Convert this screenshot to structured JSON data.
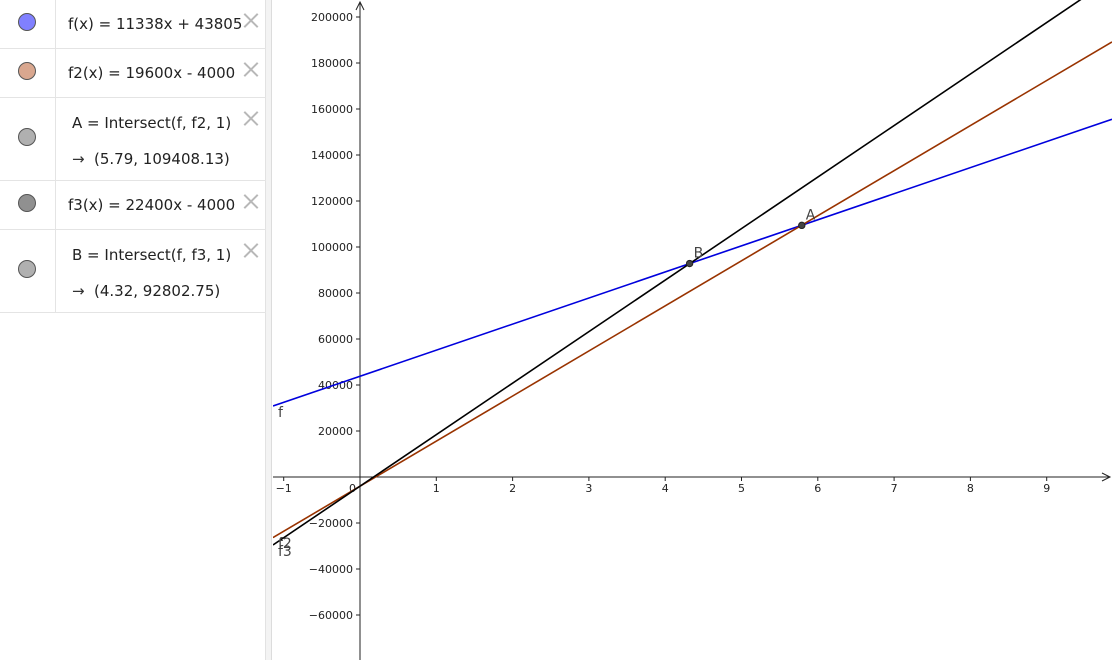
{
  "algebra": {
    "rows": [
      {
        "expr": "f(x) = 11338x + 43805",
        "color": "#8080ff"
      },
      {
        "expr": "f2(x) = 19600x - 4000",
        "color": "#d9a78f"
      },
      {
        "expr": "A = Intersect(f, f2, 1)",
        "output": "(5.79, 109408.13)",
        "color": "#b0b0b0"
      },
      {
        "expr": "f3(x) = 22400x - 4000",
        "color": "#909090"
      },
      {
        "expr": "B = Intersect(f, f3, 1)",
        "output": "(4.32, 92802.75)",
        "color": "#b0b0b0"
      }
    ],
    "output_arrow": "→"
  },
  "chart_data": {
    "type": "line",
    "xlim": [
      -1.15,
      9.8
    ],
    "ylim": [
      -78000,
      203000
    ],
    "grid": false,
    "x_ticks": [
      {
        "v": -1,
        "label": "−1"
      },
      {
        "v": 0,
        "label": "0"
      },
      {
        "v": 1,
        "label": "1"
      },
      {
        "v": 2,
        "label": "2"
      },
      {
        "v": 3,
        "label": "3"
      },
      {
        "v": 4,
        "label": "4"
      },
      {
        "v": 5,
        "label": "5"
      },
      {
        "v": 6,
        "label": "6"
      },
      {
        "v": 7,
        "label": "7"
      },
      {
        "v": 8,
        "label": "8"
      },
      {
        "v": 9,
        "label": "9"
      }
    ],
    "y_ticks": [
      {
        "v": 200000,
        "label": "200000"
      },
      {
        "v": 180000,
        "label": "180000"
      },
      {
        "v": 160000,
        "label": "160000"
      },
      {
        "v": 140000,
        "label": "140000"
      },
      {
        "v": 120000,
        "label": "120000"
      },
      {
        "v": 100000,
        "label": "100000"
      },
      {
        "v": 80000,
        "label": "80000"
      },
      {
        "v": 60000,
        "label": "60000"
      },
      {
        "v": 40000,
        "label": "40000"
      },
      {
        "v": 20000,
        "label": "20000"
      },
      {
        "v": -20000,
        "label": "−20000"
      },
      {
        "v": -40000,
        "label": "−40000"
      },
      {
        "v": -60000,
        "label": "−60000"
      }
    ],
    "series": [
      {
        "name": "f",
        "slope": 11338,
        "intercept": 43805,
        "color": "#0000dd"
      },
      {
        "name": "f2",
        "slope": 19600,
        "intercept": -4000,
        "color": "#993300"
      },
      {
        "name": "f3",
        "slope": 22400,
        "intercept": -4000,
        "color": "#000000"
      }
    ],
    "points": [
      {
        "name": "A",
        "x": 5.79,
        "y": 109408.13
      },
      {
        "name": "B",
        "x": 4.32,
        "y": 92802.75
      }
    ]
  }
}
